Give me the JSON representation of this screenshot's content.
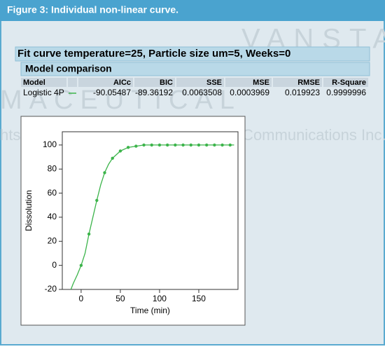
{
  "figure_title": "Figure 3: Individual non-linear curve.",
  "watermark": [
    "VANSTAR",
    "MACEUTICAL",
    "hts Reserved. Copyright Advanstar Communications Inc."
  ],
  "fit_title": "Fit curve temperature=25, Particle size um=5, Weeks=0",
  "model_comparison": {
    "title": "Model comparison",
    "header": [
      "Model",
      "AICc",
      "BIC",
      "SSE",
      "MSE",
      "RMSE",
      "R-Square"
    ],
    "rows": [
      [
        "Logistic 4P",
        "-90.05487",
        "-89.36192",
        "0.0063508",
        "0.0003969",
        "0.019923",
        "0.9999996"
      ]
    ],
    "legend_color": "#3cb44b"
  },
  "chart_data": {
    "type": "scatter",
    "x_label": "Time (min)",
    "y_label": "Dissolution",
    "xlim": [
      -24,
      200
    ],
    "ylim": [
      -20,
      111
    ],
    "xticks": [
      0,
      50,
      100,
      150
    ],
    "yticks": [
      -20,
      0,
      20,
      40,
      60,
      80,
      100
    ],
    "series": [
      {
        "color": "#3cb44b",
        "mode": "markers",
        "x": [
          0,
          10,
          20,
          30,
          40,
          50,
          60,
          70,
          80,
          90,
          100,
          110,
          120,
          130,
          140,
          150,
          160,
          170,
          180,
          190
        ],
        "values": [
          0,
          26,
          54,
          77,
          89,
          95,
          98,
          99,
          100,
          100,
          100,
          100,
          100,
          100,
          100,
          100,
          100,
          100,
          100,
          100
        ]
      },
      {
        "color": "#3cb44b",
        "mode": "line",
        "x": [
          -13,
          -10,
          -5,
          0,
          5,
          10,
          15,
          20,
          25,
          30,
          35,
          40,
          50,
          60,
          70,
          80,
          100,
          150,
          195
        ],
        "values": [
          -20,
          -15,
          -8,
          0,
          10,
          26,
          40,
          54,
          67,
          77,
          84,
          89,
          95,
          98,
          99,
          100,
          100,
          100,
          100
        ]
      }
    ]
  }
}
